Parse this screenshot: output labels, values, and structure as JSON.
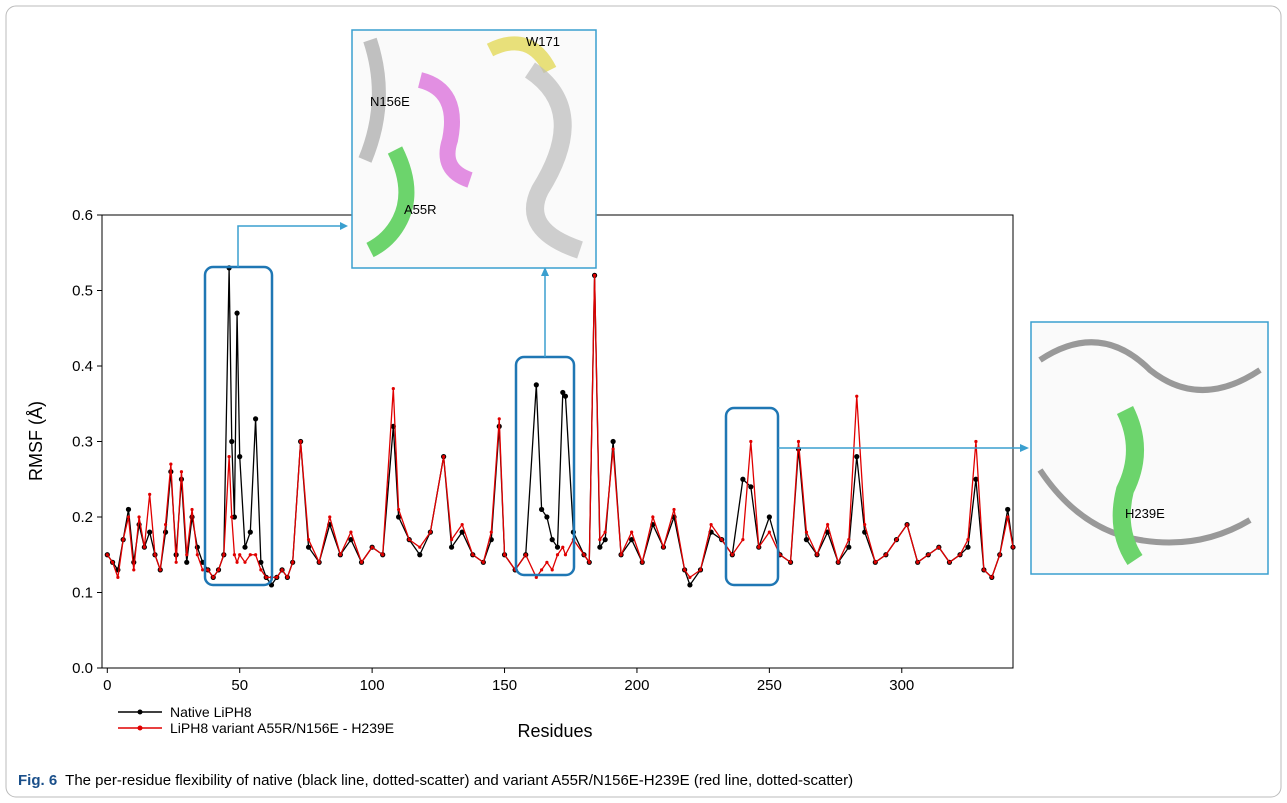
{
  "chart_data": {
    "type": "line",
    "xlabel": "Residues",
    "ylabel": "RMSF (Å)",
    "x": [
      0,
      2,
      4,
      6,
      8,
      10,
      12,
      14,
      16,
      18,
      20,
      22,
      24,
      26,
      28,
      30,
      32,
      34,
      36,
      38,
      40,
      42,
      44,
      46,
      47,
      48,
      49,
      50,
      52,
      54,
      56,
      58,
      60,
      62,
      64,
      66,
      68,
      70,
      73,
      76,
      80,
      84,
      88,
      92,
      96,
      100,
      104,
      108,
      110,
      114,
      118,
      122,
      127,
      130,
      134,
      138,
      142,
      145,
      148,
      150,
      154,
      158,
      162,
      164,
      166,
      168,
      170,
      172,
      173,
      176,
      180,
      182,
      184,
      186,
      188,
      191,
      194,
      198,
      202,
      206,
      210,
      214,
      218,
      220,
      224,
      228,
      232,
      236,
      240,
      243,
      246,
      250,
      254,
      258,
      261,
      264,
      268,
      272,
      276,
      280,
      283,
      286,
      290,
      294,
      298,
      302,
      306,
      310,
      314,
      318,
      322,
      325,
      328,
      331,
      334,
      337,
      340,
      342
    ],
    "series": [
      {
        "name": "Native LiPH8",
        "color": "#000000",
        "values": [
          0.15,
          0.14,
          0.13,
          0.17,
          0.21,
          0.14,
          0.19,
          0.16,
          0.18,
          0.15,
          0.13,
          0.18,
          0.26,
          0.15,
          0.25,
          0.14,
          0.2,
          0.16,
          0.14,
          0.13,
          0.12,
          0.13,
          0.15,
          0.53,
          0.3,
          0.2,
          0.47,
          0.28,
          0.16,
          0.18,
          0.33,
          0.14,
          0.12,
          0.11,
          0.12,
          0.13,
          0.12,
          0.14,
          0.3,
          0.16,
          0.14,
          0.19,
          0.15,
          0.17,
          0.14,
          0.16,
          0.15,
          0.32,
          0.2,
          0.17,
          0.15,
          0.18,
          0.28,
          0.16,
          0.18,
          0.15,
          0.14,
          0.17,
          0.32,
          0.15,
          0.13,
          0.15,
          0.375,
          0.21,
          0.2,
          0.17,
          0.16,
          0.365,
          0.36,
          0.18,
          0.15,
          0.14,
          0.52,
          0.16,
          0.17,
          0.3,
          0.15,
          0.17,
          0.14,
          0.19,
          0.16,
          0.2,
          0.13,
          0.11,
          0.13,
          0.18,
          0.17,
          0.15,
          0.25,
          0.24,
          0.16,
          0.2,
          0.15,
          0.14,
          0.29,
          0.17,
          0.15,
          0.18,
          0.14,
          0.16,
          0.28,
          0.18,
          0.14,
          0.15,
          0.17,
          0.19,
          0.14,
          0.15,
          0.16,
          0.14,
          0.15,
          0.16,
          0.25,
          0.13,
          0.12,
          0.15,
          0.21,
          0.16
        ]
      },
      {
        "name": "LiPH8 variant A55R/N156E - H239E",
        "color": "#e00000",
        "values": [
          0.15,
          0.14,
          0.12,
          0.17,
          0.2,
          0.13,
          0.2,
          0.16,
          0.23,
          0.15,
          0.13,
          0.19,
          0.27,
          0.14,
          0.26,
          0.15,
          0.21,
          0.15,
          0.13,
          0.13,
          0.12,
          0.13,
          0.15,
          0.28,
          0.2,
          0.15,
          0.14,
          0.15,
          0.14,
          0.15,
          0.15,
          0.13,
          0.12,
          0.12,
          0.12,
          0.13,
          0.12,
          0.14,
          0.3,
          0.17,
          0.14,
          0.2,
          0.15,
          0.18,
          0.14,
          0.16,
          0.15,
          0.37,
          0.21,
          0.17,
          0.16,
          0.18,
          0.28,
          0.17,
          0.19,
          0.15,
          0.14,
          0.18,
          0.33,
          0.15,
          0.13,
          0.15,
          0.12,
          0.13,
          0.14,
          0.13,
          0.15,
          0.16,
          0.15,
          0.17,
          0.15,
          0.14,
          0.52,
          0.17,
          0.18,
          0.29,
          0.15,
          0.18,
          0.14,
          0.2,
          0.16,
          0.21,
          0.13,
          0.12,
          0.13,
          0.19,
          0.17,
          0.15,
          0.17,
          0.3,
          0.16,
          0.18,
          0.15,
          0.14,
          0.3,
          0.18,
          0.15,
          0.19,
          0.14,
          0.17,
          0.36,
          0.19,
          0.14,
          0.15,
          0.17,
          0.19,
          0.14,
          0.15,
          0.16,
          0.14,
          0.15,
          0.17,
          0.3,
          0.13,
          0.12,
          0.15,
          0.2,
          0.16
        ]
      }
    ],
    "xlim": [
      -2,
      342
    ],
    "xticks": [
      0,
      50,
      100,
      150,
      200,
      250,
      300
    ],
    "ylim": [
      0,
      0.6
    ],
    "yticks": [
      {
        "value": 0,
        "label": "0.0"
      },
      0.1,
      0.2,
      0.3,
      0.4,
      0.5,
      0.6
    ],
    "insets": [
      "W171",
      "N156E",
      "A55R",
      "H239E"
    ],
    "caption": {
      "label": "Fig. 6",
      "text": "The per-residue flexibility of native (black line, dotted-scatter) and variant A55R/N156E-H239E (red line, dotted-scatter)"
    }
  }
}
